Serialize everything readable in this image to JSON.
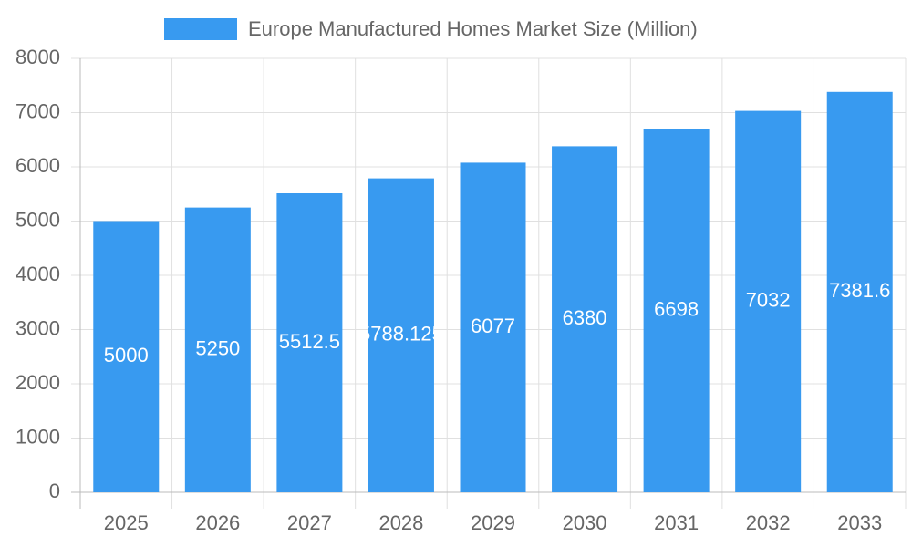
{
  "chart_data": {
    "type": "bar",
    "categories": [
      "2025",
      "2026",
      "2027",
      "2028",
      "2029",
      "2030",
      "2031",
      "2032",
      "2033"
    ],
    "series": [
      {
        "name": "Europe Manufactured Homes Market Size (Million)",
        "color": "#389af0",
        "values": [
          5000,
          5250,
          5512.5,
          5788.125,
          6077,
          6380,
          6698,
          7032,
          7381.6
        ]
      }
    ],
    "ylim": [
      0,
      8000
    ],
    "yticks": [
      0,
      1000,
      2000,
      3000,
      4000,
      5000,
      6000,
      7000,
      8000
    ],
    "grid": true,
    "legend": "top"
  }
}
